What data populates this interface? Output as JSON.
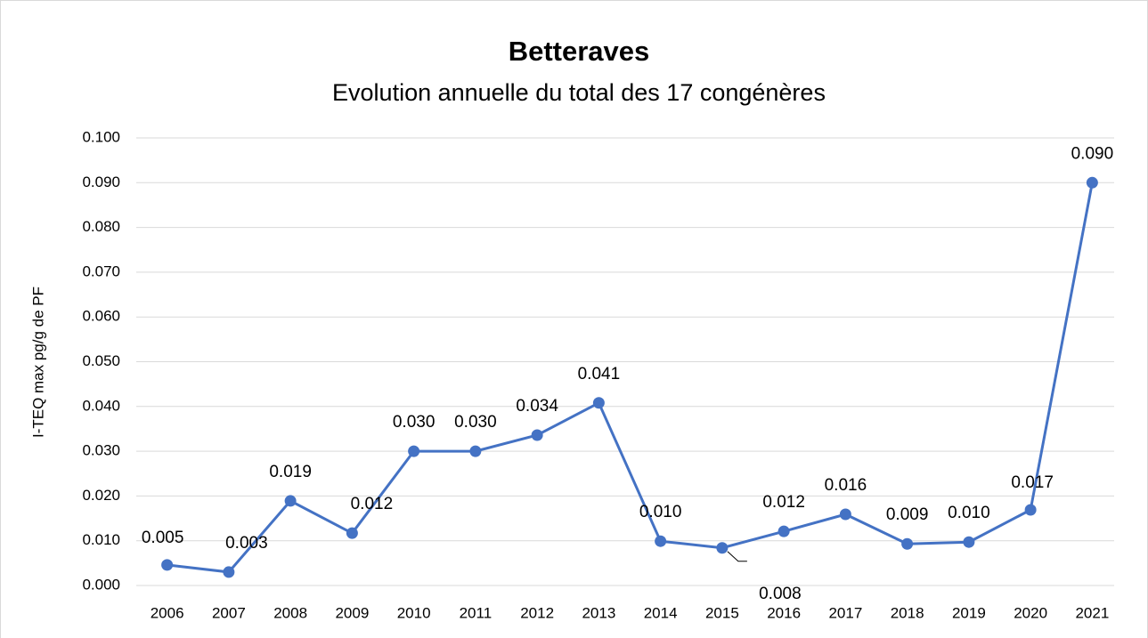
{
  "chart_data": {
    "type": "line",
    "title": "Betteraves",
    "subtitle": "Evolution annuelle du total des 17 congénères",
    "y_axis_label": "I-TEQ max pg/g de PF",
    "categories": [
      "2006",
      "2007",
      "2008",
      "2009",
      "2010",
      "2011",
      "2012",
      "2013",
      "2014",
      "2015",
      "2016",
      "2017",
      "2018",
      "2019",
      "2020",
      "2021"
    ],
    "series": [
      {
        "name": "Betteraves",
        "color": "#4472c4",
        "values": [
          0.0046,
          0.003,
          0.0189,
          0.0117,
          0.03,
          0.03,
          0.0336,
          0.0408,
          0.0099,
          0.0084,
          0.0121,
          0.0159,
          0.0093,
          0.0097,
          0.0169,
          0.09
        ],
        "value_labels": [
          "0.005",
          "0.003",
          "0.019",
          "0.012",
          "0.030",
          "0.030",
          "0.034",
          "0.041",
          "0.010",
          "0.008",
          "0.012",
          "0.016",
          "0.009",
          "0.010",
          "0.017",
          "0.090"
        ]
      }
    ],
    "ylim": [
      0,
      0.1
    ],
    "yticks": [
      {
        "value": 0,
        "label": "0.000"
      },
      {
        "value": 0.01,
        "label": "0.010"
      },
      {
        "value": 0.02,
        "label": "0.020"
      },
      {
        "value": 0.03,
        "label": "0.030"
      },
      {
        "value": 0.04,
        "label": "0.040"
      },
      {
        "value": 0.05,
        "label": "0.050"
      },
      {
        "value": 0.06,
        "label": "0.060"
      },
      {
        "value": 0.07,
        "label": "0.070"
      },
      {
        "value": 0.08,
        "label": "0.080"
      },
      {
        "value": 0.09,
        "label": "0.090"
      },
      {
        "value": 0.1,
        "label": "0.100"
      }
    ],
    "grid": true
  }
}
